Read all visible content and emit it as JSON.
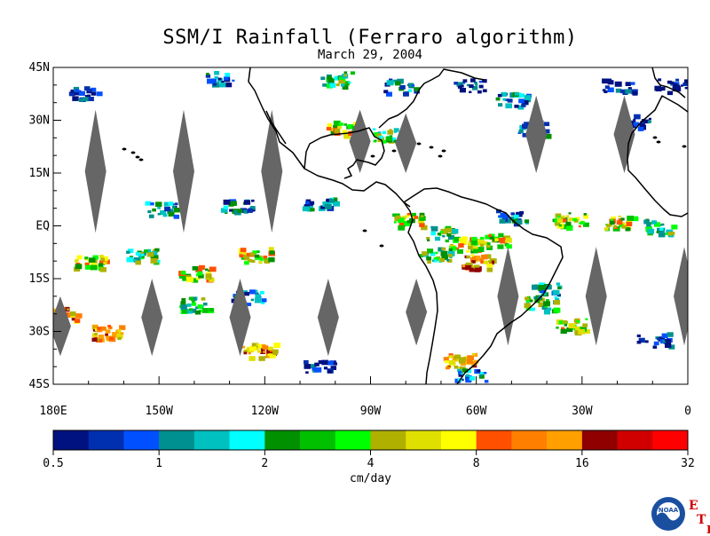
{
  "title": "SSM/I Rainfall (Ferraro algorithm)",
  "subtitle": "March 29, 2004",
  "lat_labels": [
    {
      "text": "45N",
      "lat": 45
    },
    {
      "text": "30N",
      "lat": 30
    },
    {
      "text": "15N",
      "lat": 15
    },
    {
      "text": "EQ",
      "lat": 0
    },
    {
      "text": "15S",
      "lat": -15
    },
    {
      "text": "30S",
      "lat": -30
    },
    {
      "text": "45S",
      "lat": -45
    }
  ],
  "lon_labels": [
    {
      "text": "180E",
      "lon": -180
    },
    {
      "text": "150W",
      "lon": -150
    },
    {
      "text": "120W",
      "lon": -120
    },
    {
      "text": "90W",
      "lon": -90
    },
    {
      "text": "60W",
      "lon": -60
    },
    {
      "text": "30W",
      "lon": -30
    },
    {
      "text": "0",
      "lon": 0
    }
  ],
  "colorbar": {
    "unit": "cm/day",
    "colors": [
      "#001180",
      "#0030b0",
      "#0050ff",
      "#009090",
      "#00c0c0",
      "#00ffff",
      "#009000",
      "#00c000",
      "#00ff00",
      "#b0b000",
      "#e0e000",
      "#ffff00",
      "#ff5000",
      "#ff8000",
      "#ffa000",
      "#900000",
      "#d00000",
      "#ff0000"
    ],
    "labels": [
      "0.5",
      "1",
      "2",
      "4",
      "8",
      "16",
      "32"
    ]
  },
  "gap_color": "#666666",
  "logo": {
    "text": "NOAA",
    "etl": [
      "E",
      "T",
      "L"
    ]
  },
  "chart_data": {
    "type": "heatmap",
    "title": "SSM/I Rainfall (Ferraro algorithm)",
    "subtitle": "March 29, 2004",
    "variable": "rainfall",
    "unit": "cm/day",
    "lon_range": [
      -180,
      0
    ],
    "lat_range": [
      -45,
      45
    ],
    "colorbar_ticks": [
      0.5,
      1,
      2,
      4,
      8,
      16,
      32
    ],
    "rain_clusters": [
      {
        "lon": -172,
        "lat": 38,
        "value": 1
      },
      {
        "lon": -133,
        "lat": 42,
        "value": 2
      },
      {
        "lon": -100,
        "lat": 42,
        "value": 4
      },
      {
        "lon": -82,
        "lat": 40,
        "value": 2
      },
      {
        "lon": -62,
        "lat": 40,
        "value": 1
      },
      {
        "lon": -50,
        "lat": 36,
        "value": 2
      },
      {
        "lon": -45,
        "lat": 28,
        "value": 2
      },
      {
        "lon": -98,
        "lat": 28,
        "value": 8
      },
      {
        "lon": -85,
        "lat": 26,
        "value": 4
      },
      {
        "lon": -20,
        "lat": 40,
        "value": 1
      },
      {
        "lon": -5,
        "lat": 40,
        "value": 1
      },
      {
        "lon": -15,
        "lat": 30,
        "value": 1
      },
      {
        "lon": -80,
        "lat": 2,
        "value": 8
      },
      {
        "lon": -70,
        "lat": -2,
        "value": 4
      },
      {
        "lon": -64,
        "lat": -5,
        "value": 8
      },
      {
        "lon": -56,
        "lat": -4,
        "value": 8
      },
      {
        "lon": -60,
        "lat": -10,
        "value": 16
      },
      {
        "lon": -72,
        "lat": -8,
        "value": 4
      },
      {
        "lon": -50,
        "lat": 3,
        "value": 2
      },
      {
        "lon": -34,
        "lat": 2,
        "value": 8
      },
      {
        "lon": -20,
        "lat": 1,
        "value": 8
      },
      {
        "lon": -8,
        "lat": 0,
        "value": 4
      },
      {
        "lon": -150,
        "lat": 5,
        "value": 2
      },
      {
        "lon": -128,
        "lat": 6,
        "value": 2
      },
      {
        "lon": -105,
        "lat": 7,
        "value": 2
      },
      {
        "lon": -170,
        "lat": -10,
        "value": 8
      },
      {
        "lon": -155,
        "lat": -8,
        "value": 4
      },
      {
        "lon": -140,
        "lat": -13,
        "value": 8
      },
      {
        "lon": -123,
        "lat": -8,
        "value": 8
      },
      {
        "lon": -178,
        "lat": -25,
        "value": 16
      },
      {
        "lon": -165,
        "lat": -30,
        "value": 16
      },
      {
        "lon": -140,
        "lat": -22,
        "value": 4
      },
      {
        "lon": -125,
        "lat": -20,
        "value": 2
      },
      {
        "lon": -122,
        "lat": -35,
        "value": 16
      },
      {
        "lon": -105,
        "lat": -40,
        "value": 1
      },
      {
        "lon": -65,
        "lat": -38,
        "value": 16
      },
      {
        "lon": -62,
        "lat": -42,
        "value": 2
      },
      {
        "lon": -42,
        "lat": -22,
        "value": 4
      },
      {
        "lon": -33,
        "lat": -28,
        "value": 8
      },
      {
        "lon": -40,
        "lat": -18,
        "value": 2
      },
      {
        "lon": -10,
        "lat": -32,
        "value": 1
      }
    ],
    "data_gaps": [
      {
        "lon": -168,
        "lat_min": -2,
        "lat_max": 33
      },
      {
        "lon": -143,
        "lat_min": -2,
        "lat_max": 33
      },
      {
        "lon": -118,
        "lat_min": -2,
        "lat_max": 33
      },
      {
        "lon": -93,
        "lat_min": 15,
        "lat_max": 33
      },
      {
        "lon": -80,
        "lat_min": 15,
        "lat_max": 32
      },
      {
        "lon": -43,
        "lat_min": 15,
        "lat_max": 37
      },
      {
        "lon": -18,
        "lat_min": 15,
        "lat_max": 37
      },
      {
        "lon": -178,
        "lat_min": -37,
        "lat_max": -20
      },
      {
        "lon": -152,
        "lat_min": -37,
        "lat_max": -15
      },
      {
        "lon": -127,
        "lat_min": -37,
        "lat_max": -15
      },
      {
        "lon": -102,
        "lat_min": -37,
        "lat_max": -15
      },
      {
        "lon": -77,
        "lat_min": -34,
        "lat_max": -15
      },
      {
        "lon": -51,
        "lat_min": -34,
        "lat_max": -6
      },
      {
        "lon": -26,
        "lat_min": -34,
        "lat_max": -6
      },
      {
        "lon": -1,
        "lat_min": -34,
        "lat_max": -6
      }
    ]
  }
}
